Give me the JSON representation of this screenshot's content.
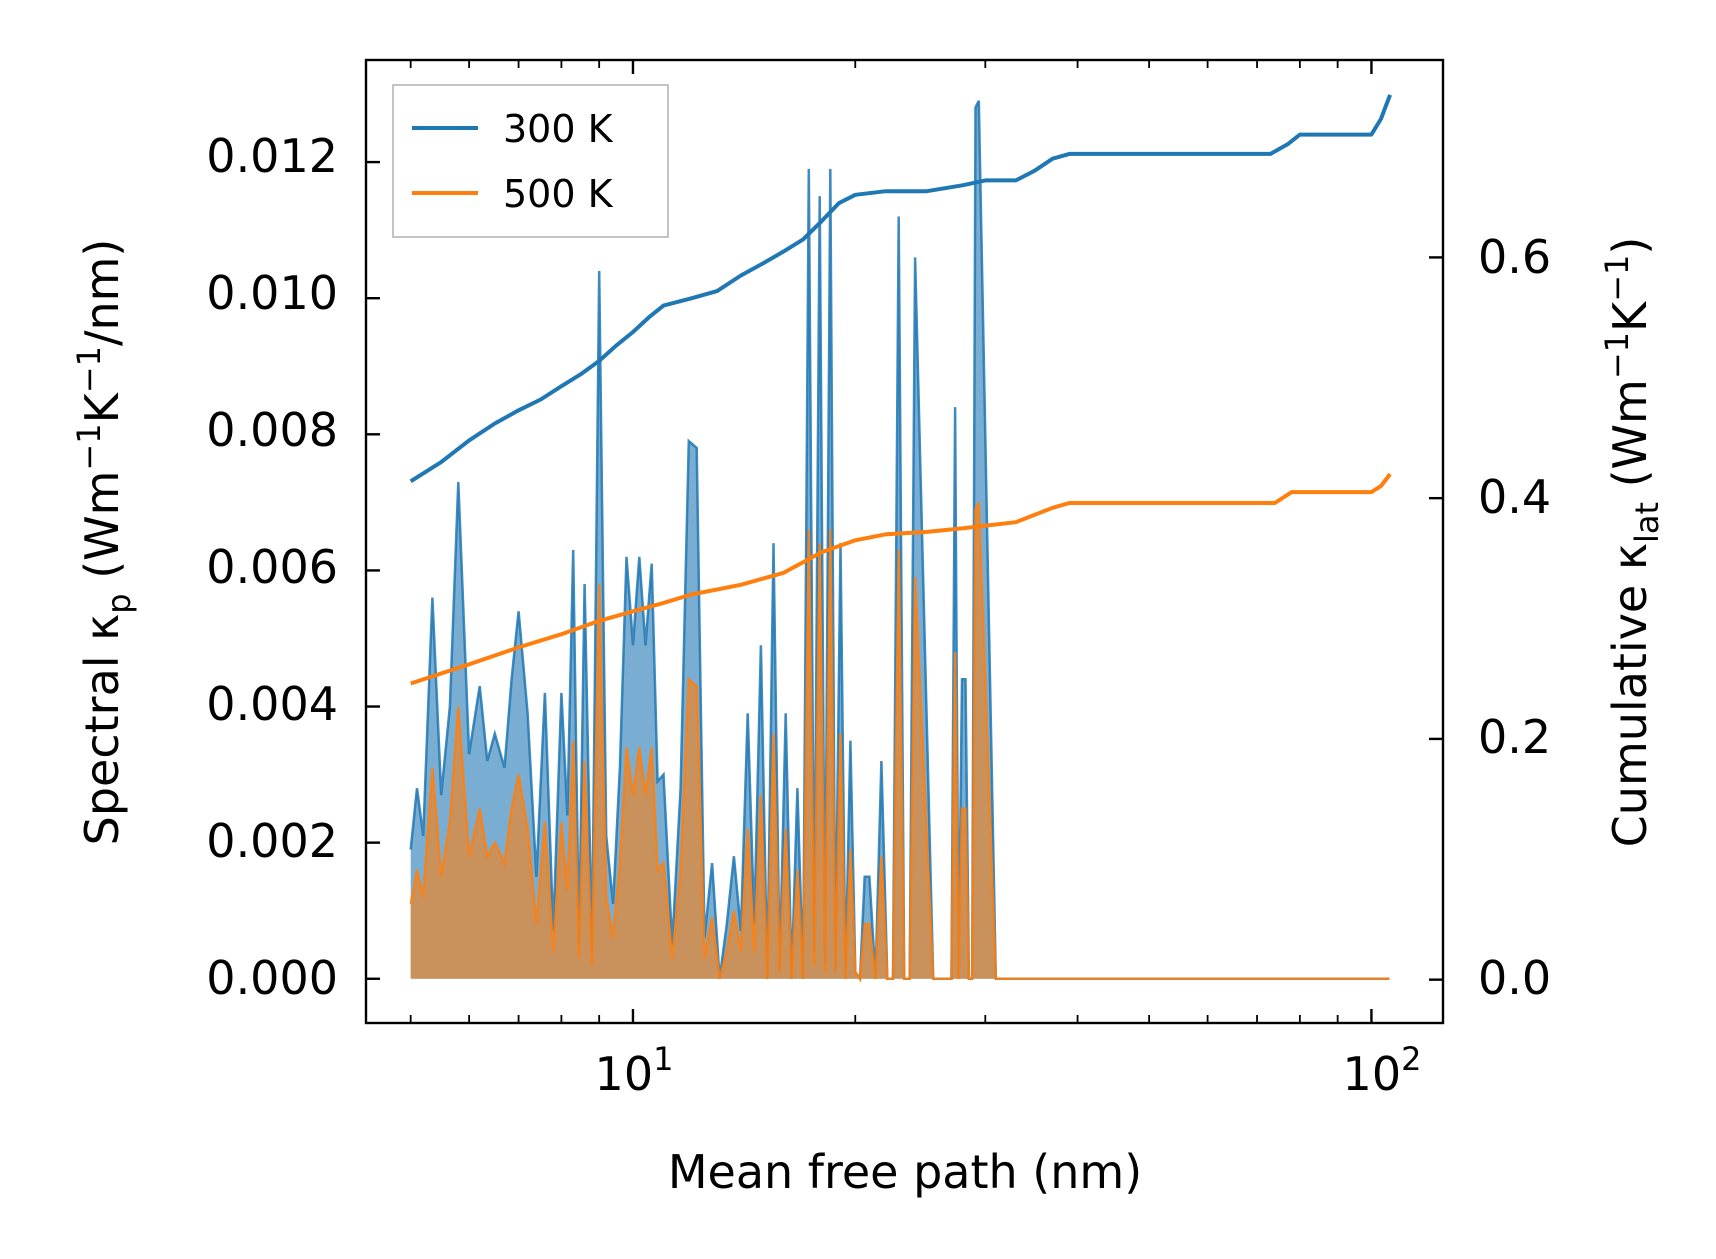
{
  "chart_data": {
    "type": "area",
    "xlabel": "Mean free path (nm)",
    "xscale": "log",
    "xlim": [
      4.35,
      125
    ],
    "x_ticks": [
      {
        "value": 10,
        "base": "10",
        "exp": "1"
      },
      {
        "value": 100,
        "base": "10",
        "exp": "2"
      }
    ],
    "left_axis": {
      "label": {
        "pre": "Spectral κ",
        "sub": "p",
        "mid": " (Wm",
        "sup1": "−1",
        "mid2": "K",
        "sup2": "−1",
        "post": "/nm)"
      },
      "ylim": [
        -0.00065,
        0.0135
      ],
      "ticks": [
        "0.000",
        "0.002",
        "0.004",
        "0.006",
        "0.008",
        "0.010",
        "0.012"
      ],
      "tick_values": [
        0,
        0.002,
        0.004,
        0.006,
        0.008,
        0.01,
        0.012
      ]
    },
    "right_axis": {
      "label": {
        "pre": "Cumulative κ",
        "sub": "lat",
        "mid": " (Wm",
        "sup1": "−1",
        "mid2": "K",
        "sup2": "−1",
        "post": ")"
      },
      "ylim": [
        -0.036,
        0.764
      ],
      "ticks": [
        "0.0",
        "0.2",
        "0.4",
        "0.6"
      ],
      "tick_values": [
        0,
        0.2,
        0.4,
        0.6
      ]
    },
    "legend": {
      "position": "upper-left",
      "entries": [
        "300 K",
        "500 K"
      ]
    },
    "colors": {
      "300 K": "#1f77b4",
      "500 K": "#ff7f0e"
    },
    "series": [
      {
        "name": "300 K",
        "axis": "left",
        "kind": "spectral",
        "x": [
          5.0,
          5.1,
          5.2,
          5.35,
          5.5,
          5.65,
          5.8,
          6.0,
          6.2,
          6.35,
          6.5,
          6.7,
          6.85,
          7.0,
          7.2,
          7.4,
          7.6,
          7.8,
          8.0,
          8.15,
          8.3,
          8.45,
          8.6,
          8.8,
          9.0,
          9.2,
          9.4,
          9.6,
          9.8,
          10.0,
          10.2,
          10.4,
          10.6,
          10.8,
          11.0,
          11.3,
          11.6,
          11.9,
          12.2,
          12.5,
          12.8,
          13.1,
          13.4,
          13.7,
          14.0,
          14.3,
          14.6,
          14.9,
          15.2,
          15.5,
          15.8,
          16.1,
          16.4,
          16.7,
          17.0,
          17.3,
          17.6,
          17.9,
          18.2,
          18.5,
          18.8,
          19.1,
          19.4,
          19.7,
          20.0,
          20.3,
          20.6,
          20.9,
          21.3,
          21.7,
          22.1,
          22.5,
          22.9,
          23.3,
          23.7,
          24.1,
          25.5,
          27.0,
          27.3,
          27.6,
          27.9,
          28.2,
          28.5,
          28.8,
          29.1,
          29.4,
          31.0,
          33.0,
          33.5,
          34.0,
          34.5,
          35.5,
          37.0,
          37.5,
          38.0,
          38.6,
          40.0,
          60.0,
          74.0,
          74.6,
          75.3,
          76.0,
          78.0,
          78.7,
          80.0,
          100.0,
          104.0,
          104.6,
          105.2,
          105.8
        ],
        "y": [
          0.0019,
          0.0028,
          0.0021,
          0.0056,
          0.0027,
          0.004,
          0.0073,
          0.0033,
          0.0043,
          0.0032,
          0.0036,
          0.0031,
          0.0044,
          0.0054,
          0.0039,
          0.0015,
          0.0042,
          0.0007,
          0.0042,
          0.0024,
          0.0063,
          0.0005,
          0.0058,
          0.0004,
          0.0104,
          0.0021,
          0.0011,
          0.0031,
          0.0062,
          0.0049,
          0.0062,
          0.0049,
          0.0061,
          0.0029,
          0.003,
          0.0005,
          0.0028,
          0.0079,
          0.0078,
          0.0006,
          0.0017,
          0.0,
          0.0008,
          0.0018,
          0.0007,
          0.0039,
          0.0008,
          0.0049,
          0.0,
          0.0064,
          0.0001,
          0.0039,
          0.0,
          0.0028,
          0.0,
          0.0119,
          0.0004,
          0.0115,
          0.0002,
          0.0119,
          0.0001,
          0.0064,
          0.0,
          0.0035,
          0.0001,
          0.0,
          0.0015,
          0.0015,
          0.0,
          0.0032,
          0.0,
          0.0,
          0.0112,
          0.0,
          0.0,
          0.0106,
          0.0,
          0.0,
          0.0084,
          0.0,
          0.0044,
          0.0044,
          0.0,
          0.0,
          0.0128,
          0.0129,
          0.0,
          0.0,
          0.0,
          0.0,
          0.0,
          0.0,
          0.0,
          0.0,
          0.0,
          0.0,
          0.0,
          0.0,
          0.0,
          0.0,
          0.0,
          0.0,
          0.0,
          0.0,
          0.0,
          0.0,
          0.0,
          0.0,
          0.0,
          0.0
        ]
      },
      {
        "name": "500 K",
        "axis": "left",
        "kind": "spectral",
        "x": [
          5.0,
          5.1,
          5.2,
          5.35,
          5.5,
          5.65,
          5.8,
          6.0,
          6.2,
          6.35,
          6.5,
          6.7,
          6.85,
          7.0,
          7.2,
          7.4,
          7.6,
          7.8,
          8.0,
          8.15,
          8.3,
          8.45,
          8.6,
          8.8,
          9.0,
          9.2,
          9.4,
          9.6,
          9.8,
          10.0,
          10.2,
          10.4,
          10.6,
          10.8,
          11.0,
          11.3,
          11.6,
          11.9,
          12.2,
          12.5,
          12.8,
          13.1,
          13.4,
          13.7,
          14.0,
          14.3,
          14.6,
          14.9,
          15.2,
          15.5,
          15.8,
          16.1,
          16.4,
          16.7,
          17.0,
          17.3,
          17.6,
          17.9,
          18.2,
          18.5,
          18.8,
          19.1,
          19.4,
          19.7,
          20.0,
          20.3,
          20.6,
          20.9,
          21.3,
          21.7,
          22.1,
          22.5,
          22.9,
          23.3,
          23.7,
          24.1,
          25.5,
          27.0,
          27.3,
          27.6,
          27.9,
          28.2,
          28.5,
          28.8,
          29.1,
          29.4,
          31.0,
          33.0,
          33.5,
          34.0,
          34.5,
          35.5,
          37.0,
          37.5,
          38.0,
          38.6,
          40.0,
          60.0,
          74.0,
          74.6,
          75.3,
          76.0,
          78.0,
          78.7,
          80.0,
          100.0,
          104.0,
          104.6,
          105.2,
          105.8
        ],
        "y": [
          0.0011,
          0.0016,
          0.0012,
          0.0031,
          0.0015,
          0.0023,
          0.004,
          0.0018,
          0.0025,
          0.0018,
          0.002,
          0.0017,
          0.0025,
          0.003,
          0.0022,
          0.0008,
          0.0023,
          0.0004,
          0.0023,
          0.0013,
          0.0035,
          0.0003,
          0.0032,
          0.0002,
          0.0058,
          0.0012,
          0.0006,
          0.0017,
          0.0034,
          0.0027,
          0.0034,
          0.0027,
          0.0034,
          0.0016,
          0.0017,
          0.0003,
          0.0016,
          0.0044,
          0.0043,
          0.0003,
          0.0009,
          0.0,
          0.0004,
          0.001,
          0.0004,
          0.0022,
          0.0004,
          0.0027,
          0.0,
          0.0036,
          0.0001,
          0.0022,
          0.0,
          0.0016,
          0.0,
          0.0066,
          0.0002,
          0.0064,
          0.0001,
          0.0066,
          0.0001,
          0.0036,
          0.0,
          0.0019,
          0.0001,
          0.0,
          0.0008,
          0.0008,
          0.0,
          0.0018,
          0.0,
          0.0,
          0.0063,
          0.0,
          0.0,
          0.0059,
          0.0,
          0.0,
          0.0048,
          0.0,
          0.0025,
          0.0025,
          0.0,
          0.0,
          0.0069,
          0.007,
          0.0,
          0.0,
          0.0,
          0.0,
          0.0,
          0.0,
          0.0,
          0.0,
          0.0,
          0.0,
          0.0,
          0.0,
          0.0,
          0.0,
          0.0,
          0.0,
          0.0,
          0.0,
          0.0,
          0.0,
          0.0,
          0.0,
          0.0,
          0.0
        ]
      },
      {
        "name": "300 K",
        "axis": "right",
        "kind": "cumulative",
        "x": [
          5.0,
          5.5,
          6.0,
          6.5,
          7.0,
          7.5,
          8.0,
          8.5,
          9.0,
          9.5,
          10.0,
          10.5,
          11.0,
          12.0,
          13.0,
          14.0,
          15.0,
          16.0,
          17.0,
          18.0,
          19.0,
          20.0,
          22.0,
          25.0,
          28.0,
          30.0,
          33.0,
          35.0,
          37.0,
          39.0,
          60.0,
          73.0,
          77.0,
          80.0,
          100.0,
          103.0,
          106.0
        ],
        "y": [
          0.414,
          0.43,
          0.448,
          0.462,
          0.473,
          0.482,
          0.493,
          0.503,
          0.514,
          0.527,
          0.538,
          0.55,
          0.56,
          0.566,
          0.572,
          0.585,
          0.595,
          0.605,
          0.615,
          0.63,
          0.645,
          0.652,
          0.655,
          0.655,
          0.66,
          0.664,
          0.664,
          0.672,
          0.682,
          0.686,
          0.686,
          0.686,
          0.694,
          0.702,
          0.702,
          0.715,
          0.735
        ]
      },
      {
        "name": "500 K",
        "axis": "right",
        "kind": "cumulative",
        "x": [
          5.0,
          6.0,
          7.0,
          8.0,
          9.0,
          10.0,
          11.0,
          12.0,
          14.0,
          16.0,
          18.0,
          20.0,
          22.0,
          25.0,
          28.0,
          33.0,
          37.0,
          39.0,
          60.0,
          74.0,
          78.0,
          100.0,
          103.0,
          106.0
        ],
        "y": [
          0.246,
          0.262,
          0.276,
          0.287,
          0.298,
          0.306,
          0.313,
          0.32,
          0.328,
          0.338,
          0.355,
          0.365,
          0.37,
          0.372,
          0.375,
          0.38,
          0.392,
          0.396,
          0.396,
          0.396,
          0.405,
          0.405,
          0.41,
          0.42
        ]
      }
    ]
  }
}
